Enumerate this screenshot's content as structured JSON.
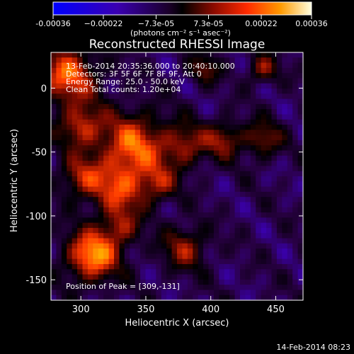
{
  "colorbar": {
    "tick_labels": [
      "-0.00036",
      "−0.00022",
      "−7.3e-05",
      "7.3e-05",
      "0.00022",
      "0.00036"
    ],
    "tick_values": [
      -0.00036,
      -0.00022,
      -7.3e-05,
      7.3e-05,
      0.00022,
      0.00036
    ],
    "range": [
      -0.00036,
      0.00036
    ],
    "units": "(photons cm⁻² s⁻¹ asec⁻²)"
  },
  "chart_data": {
    "type": "heatmap",
    "title": "Reconstructed RHESSI Image",
    "xlabel": "Heliocentric X (arcsec)",
    "ylabel": "Heliocentric Y (arcsec)",
    "xlim": [
      277,
      471
    ],
    "ylim": [
      -166,
      28
    ],
    "x_ticks": [
      300,
      350,
      400,
      450
    ],
    "y_ticks": [
      0,
      -50,
      -100,
      -150
    ],
    "peak": [
      309,
      -131
    ],
    "colormap": [
      "#0000ff",
      "#3a00b0",
      "#2a0046",
      "#000000",
      "#7a0a00",
      "#ff3a00",
      "#ffae00",
      "#ffffd0"
    ],
    "annotations": [
      "13-Feb-2014 20:35:36.000 to 20:40:10.000",
      "Detectors: 3F 5F 6F 7F 8F 9F, Att 0",
      "Energy Range: 25.0 - 50.0 keV",
      "Clean    Total counts: 1.20e+04"
    ],
    "peak_label": "Position of Peak = [309,-131]"
  },
  "footer": {
    "timestamp": "14-Feb-2014 08:23"
  }
}
